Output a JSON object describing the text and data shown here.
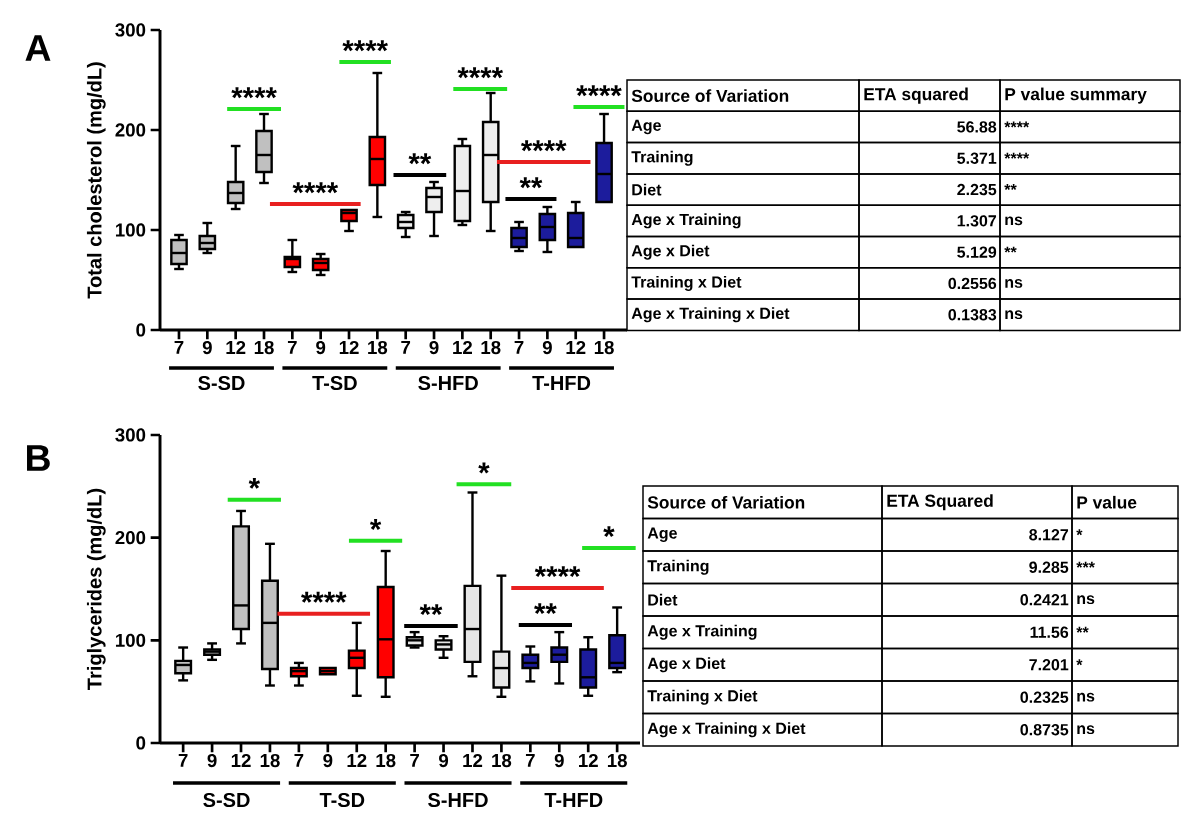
{
  "chart_data": [
    {
      "type": "box",
      "title": "A",
      "ylabel": "Total cholesterol (mg/dL)",
      "categories": [
        "7",
        "9",
        "12",
        "18",
        "7",
        "9",
        "12",
        "18",
        "7",
        "9",
        "12",
        "18",
        "7",
        "9",
        "12",
        "18"
      ],
      "boxes": [
        {
          "low": 61,
          "q1": 66,
          "median": 77,
          "q3": 90,
          "high": 95
        },
        {
          "low": 77,
          "q1": 81,
          "median": 87,
          "q3": 94,
          "high": 107
        },
        {
          "low": 121,
          "q1": 127,
          "median": 137,
          "q3": 148,
          "high": 184
        },
        {
          "low": 147,
          "q1": 158,
          "median": 175,
          "q3": 199,
          "high": 216
        },
        {
          "low": 58,
          "q1": 63,
          "median": 71,
          "q3": 73,
          "high": 90
        },
        {
          "low": 55,
          "q1": 60,
          "median": 67,
          "q3": 71,
          "high": 76
        },
        {
          "low": 99,
          "q1": 109,
          "median": 117,
          "q3": 120,
          "high": 120
        },
        {
          "low": 113,
          "q1": 145,
          "median": 171,
          "q3": 193,
          "high": 257
        },
        {
          "low": 93,
          "q1": 102,
          "median": 108,
          "q3": 115,
          "high": 118
        },
        {
          "low": 94,
          "q1": 118,
          "median": 133,
          "q3": 142,
          "high": 148
        },
        {
          "low": 105,
          "q1": 109,
          "median": 139,
          "q3": 184,
          "high": 191
        },
        {
          "low": 99,
          "q1": 128,
          "median": 175,
          "q3": 208,
          "high": 237
        },
        {
          "low": 79,
          "q1": 83,
          "median": 92,
          "q3": 102,
          "high": 108
        },
        {
          "low": 78,
          "q1": 90,
          "median": 103,
          "q3": 116,
          "high": 123
        },
        {
          "low": 83,
          "q1": 83,
          "median": 92,
          "q3": 117,
          "high": 128
        },
        {
          "low": 128,
          "q1": 128,
          "median": 156,
          "q3": 187,
          "high": 216
        }
      ],
      "colors": [
        "#c0c0c0",
        "#c0c0c0",
        "#c0c0c0",
        "#c0c0c0",
        "#ff0000",
        "#ff0000",
        "#ff0000",
        "#ff0000",
        "#eeeeee",
        "#eeeeee",
        "#eeeeee",
        "#eeeeee",
        "#1c1c9c",
        "#1c1c9c",
        "#1c1c9c",
        "#1c1c9c"
      ],
      "ylim": [
        0,
        300
      ],
      "yticks": [
        0,
        100,
        200,
        300
      ],
      "annotations": [
        "S-SD",
        "T-SD",
        "S-HFD",
        "T-HFD",
        "****",
        "****",
        "****",
        "**",
        "****",
        "****",
        "**",
        "****"
      ]
    },
    {
      "type": "other",
      "annotations": [
        "Source of Variation",
        "ETA squared",
        "P value summary",
        "Age",
        "56.88",
        "****",
        "Training",
        "5.371",
        "****",
        "Diet",
        "2.235",
        "**",
        "Age x Training",
        "1.307",
        "ns",
        "Age x Diet",
        "5.129",
        "**",
        "Training x Diet",
        "0.2556",
        "ns",
        "Age x Training x Diet",
        "0.1383",
        "ns"
      ]
    },
    {
      "type": "box",
      "title": "B",
      "ylabel": "Triglycerides (mg/dL)",
      "categories": [
        "7",
        "9",
        "12",
        "18",
        "7",
        "9",
        "12",
        "18",
        "7",
        "9",
        "12",
        "18",
        "7",
        "9",
        "12",
        "18"
      ],
      "boxes": [
        {
          "low": 61,
          "q1": 68,
          "median": 76,
          "q3": 80,
          "high": 93
        },
        {
          "low": 81,
          "q1": 86,
          "median": 89,
          "q3": 91,
          "high": 97
        },
        {
          "low": 97,
          "q1": 111,
          "median": 134,
          "q3": 211,
          "high": 226
        },
        {
          "low": 56,
          "q1": 72,
          "median": 117,
          "q3": 158,
          "high": 194
        },
        {
          "low": 56,
          "q1": 65,
          "median": 70,
          "q3": 73,
          "high": 78
        },
        {
          "low": 67,
          "q1": 67,
          "median": 70,
          "q3": 73,
          "high": 73
        },
        {
          "low": 46,
          "q1": 73,
          "median": 83,
          "q3": 90,
          "high": 117
        },
        {
          "low": 45,
          "q1": 64,
          "median": 101,
          "q3": 152,
          "high": 187
        },
        {
          "low": 93,
          "q1": 95,
          "median": 100,
          "q3": 103,
          "high": 108
        },
        {
          "low": 83,
          "q1": 91,
          "median": 96,
          "q3": 100,
          "high": 104
        },
        {
          "low": 65,
          "q1": 79,
          "median": 111,
          "q3": 153,
          "high": 244
        },
        {
          "low": 45,
          "q1": 54,
          "median": 73,
          "q3": 89,
          "high": 163
        },
        {
          "low": 60,
          "q1": 73,
          "median": 78,
          "q3": 86,
          "high": 94
        },
        {
          "low": 58,
          "q1": 79,
          "median": 86,
          "q3": 93,
          "high": 108
        },
        {
          "low": 46,
          "q1": 54,
          "median": 64,
          "q3": 91,
          "high": 103
        },
        {
          "low": 69,
          "q1": 73,
          "median": 78,
          "q3": 105,
          "high": 132
        }
      ],
      "colors": [
        "#c0c0c0",
        "#c0c0c0",
        "#c0c0c0",
        "#c0c0c0",
        "#ff0000",
        "#ff0000",
        "#ff0000",
        "#ff0000",
        "#e6e6e6",
        "#e6e6e6",
        "#e6e6e6",
        "#e6e6e6",
        "#1c1c9c",
        "#1c1c9c",
        "#1c1c9c",
        "#1c1c9c"
      ],
      "ylim": [
        0,
        300
      ],
      "yticks": [
        0,
        100,
        200,
        300
      ],
      "annotations": [
        "S-SD",
        "T-SD",
        "S-HFD",
        "T-HFD",
        "*",
        "****",
        "*",
        "**",
        "*",
        "****",
        "**",
        "*"
      ]
    },
    {
      "type": "other",
      "annotations": [
        "Source of Variation",
        "ETA Squared",
        "P value",
        "Age",
        "8.127",
        "*",
        "Training",
        "9.285",
        "***",
        "Diet",
        "0.2421",
        "ns",
        "Age x Training",
        "11.56",
        "**",
        "Age x Diet",
        "7.201",
        "*",
        "Training x Diet",
        "0.2325",
        "ns",
        "Age x Training x Diet",
        "0.8735",
        "ns"
      ]
    }
  ]
}
